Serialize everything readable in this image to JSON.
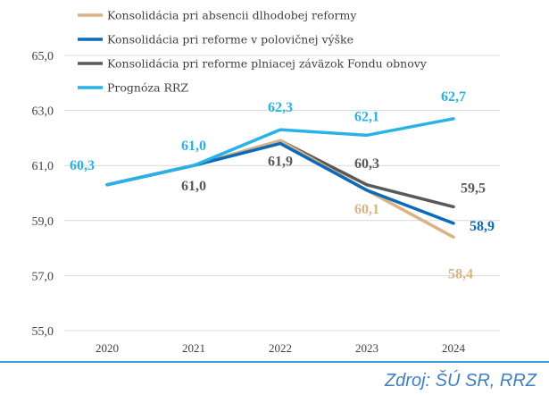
{
  "chart_data": {
    "type": "line",
    "x": [
      "2020",
      "2021",
      "2022",
      "2023",
      "2024"
    ],
    "ylim": [
      55,
      65
    ],
    "yticks": [
      "55,0",
      "57,0",
      "59,0",
      "61,0",
      "63,0",
      "65,0"
    ],
    "grid": true,
    "legend_position": "top-left",
    "series": [
      {
        "name": "Konsolidácia pri absencii dlhodobej reformy",
        "color": "#d9b382",
        "values": [
          60.3,
          61.0,
          61.9,
          60.1,
          58.4
        ],
        "labels": [
          null,
          null,
          null,
          "60,1",
          "58,4"
        ]
      },
      {
        "name": "Konsolidácia pri reforme v polovičnej výške",
        "color": "#0a6bbd",
        "values": [
          60.3,
          61.0,
          61.8,
          60.1,
          58.9
        ],
        "labels": [
          null,
          null,
          null,
          null,
          "58,9"
        ]
      },
      {
        "name": "Konsolidácia pri reforme plniacej záväzok Fondu obnovy",
        "color": "#595959",
        "values": [
          60.3,
          61.0,
          61.9,
          60.3,
          59.5
        ],
        "labels": [
          null,
          "61,0",
          "61,9",
          "60,3",
          "59,5"
        ]
      },
      {
        "name": "Prognóza RRZ",
        "color": "#29b2e6",
        "values": [
          60.3,
          61.0,
          62.3,
          62.1,
          62.7
        ],
        "labels": [
          "60,3",
          "61,0",
          "62,3",
          "62,1",
          "62,7"
        ]
      }
    ]
  },
  "source": "Zdroj: ŠÚ SR, RRZ"
}
